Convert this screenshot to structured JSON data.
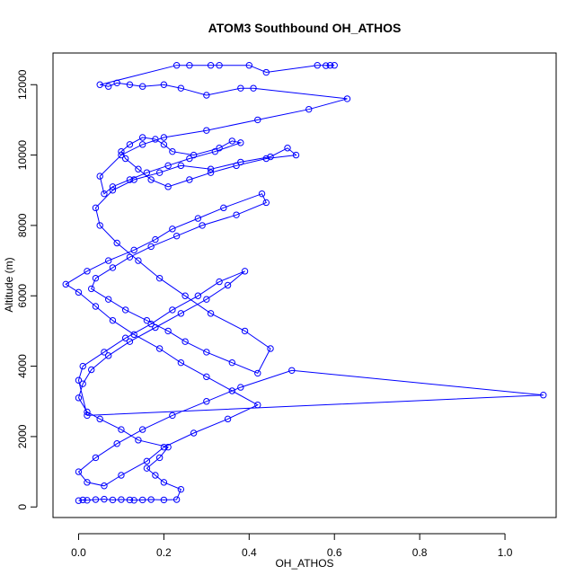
{
  "chart_data": {
    "type": "line",
    "title": "ATOM3 Southbound OH_ATHOS",
    "xlabel": "OH_ATHOS",
    "ylabel": "Altitude (m)",
    "xlim": [
      -0.06,
      1.12
    ],
    "ylim": [
      -300,
      12900
    ],
    "xticks": [
      0.0,
      0.2,
      0.4,
      0.6,
      0.8,
      1.0
    ],
    "xtick_labels": [
      "0.0",
      "0.2",
      "0.4",
      "0.6",
      "0.8",
      "1.0"
    ],
    "yticks": [
      0,
      2000,
      4000,
      6000,
      8000,
      10000,
      12000
    ],
    "ytick_labels": [
      "0",
      "2000",
      "4000",
      "6000",
      "8000",
      "10000",
      "12000"
    ],
    "grid": false,
    "marker": "open-circle",
    "colors": {
      "series": "#0000ff",
      "axes": "#000000",
      "background": "#ffffff"
    },
    "series": [
      {
        "x": [
          0.0,
          0.01,
          0.02,
          0.04,
          0.06,
          0.08,
          0.1,
          0.12,
          0.13,
          0.15,
          0.17,
          0.2,
          0.23,
          0.24,
          0.2,
          0.18,
          0.16,
          0.19,
          0.21,
          0.14,
          0.1,
          0.05,
          0.02,
          0.0,
          0.01,
          0.03,
          0.07,
          0.12,
          0.18,
          0.24,
          0.3,
          0.35,
          0.39,
          0.33,
          0.28,
          0.22,
          0.17,
          0.11,
          0.06,
          0.01,
          0.0,
          0.02,
          1.09,
          0.5,
          0.38,
          0.3,
          0.22,
          0.15,
          0.09,
          0.04,
          0.0,
          0.02,
          0.06,
          0.1,
          0.16,
          0.2,
          0.27,
          0.35,
          0.42,
          0.36,
          0.3,
          0.24,
          0.19,
          0.13,
          0.08,
          0.04,
          0.0,
          -0.03,
          0.02,
          0.07,
          0.13,
          0.18,
          0.22,
          0.28,
          0.34,
          0.43,
          0.44,
          0.37,
          0.29,
          0.23,
          0.17,
          0.12,
          0.08,
          0.04,
          0.03,
          0.07,
          0.11,
          0.16,
          0.21,
          0.25,
          0.3,
          0.36,
          0.42,
          0.45,
          0.39,
          0.31,
          0.25,
          0.19,
          0.14,
          0.09,
          0.05,
          0.04,
          0.08,
          0.13,
          0.19,
          0.24,
          0.31,
          0.38,
          0.45,
          0.49,
          0.51,
          0.44,
          0.37,
          0.31,
          0.26,
          0.21,
          0.17,
          0.14,
          0.11,
          0.1,
          0.12,
          0.15,
          0.18,
          0.2,
          0.22,
          0.27,
          0.33,
          0.36,
          0.38,
          0.32,
          0.26,
          0.21,
          0.16,
          0.12,
          0.08,
          0.06,
          0.05,
          0.1,
          0.15,
          0.2,
          0.3,
          0.42,
          0.54,
          0.63,
          0.41,
          0.38,
          0.3,
          0.24,
          0.2,
          0.15,
          0.12,
          0.09,
          0.07,
          0.05,
          0.23,
          0.26,
          0.31,
          0.33,
          0.4,
          0.44,
          0.56,
          0.59,
          0.6,
          0.58
        ],
        "y": [
          180,
          200,
          190,
          210,
          220,
          200,
          210,
          200,
          190,
          200,
          210,
          200,
          210,
          500,
          700,
          900,
          1100,
          1400,
          1700,
          1900,
          2200,
          2500,
          2700,
          3100,
          3500,
          3900,
          4300,
          4700,
          5100,
          5500,
          5900,
          6300,
          6700,
          6400,
          6000,
          5600,
          5200,
          4800,
          4400,
          4000,
          3600,
          2600,
          3180,
          3880,
          3400,
          3000,
          2600,
          2200,
          1800,
          1400,
          1000,
          700,
          600,
          900,
          1300,
          1700,
          2100,
          2500,
          2900,
          3300,
          3700,
          4100,
          4500,
          4900,
          5300,
          5700,
          6100,
          6330,
          6700,
          7000,
          7300,
          7600,
          7900,
          8200,
          8500,
          8900,
          8650,
          8300,
          8000,
          7700,
          7400,
          7100,
          6800,
          6500,
          6200,
          5900,
          5600,
          5300,
          5000,
          4700,
          4400,
          4100,
          3800,
          4500,
          5000,
          5500,
          6000,
          6500,
          7000,
          7500,
          8000,
          8500,
          9000,
          9300,
          9500,
          9700,
          9600,
          9800,
          9950,
          10200,
          10000,
          9900,
          9700,
          9500,
          9300,
          9100,
          9300,
          9600,
          9900,
          10100,
          10300,
          10500,
          10450,
          10300,
          10100,
          10000,
          10200,
          10400,
          10350,
          10100,
          9900,
          9700,
          9500,
          9300,
          9100,
          8900,
          9400,
          10000,
          10300,
          10500,
          10700,
          11000,
          11300,
          11600,
          11900,
          11900,
          11700,
          11900,
          12000,
          11950,
          12000,
          12050,
          11950,
          12000,
          12550,
          12550,
          12550,
          12550,
          12550,
          12350,
          12550,
          12550,
          12550,
          12540
        ]
      }
    ]
  }
}
